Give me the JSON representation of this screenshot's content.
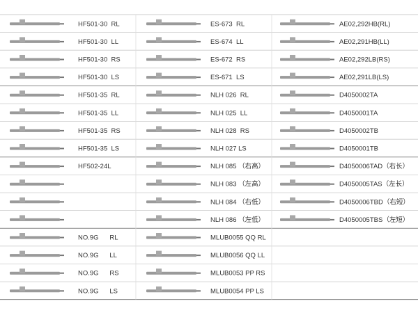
{
  "table": {
    "rows": [
      [
        "HF501-30  RL",
        "ES-673  RL",
        "AE02,292HB(RL)"
      ],
      [
        "HF501-30  LL",
        "ES-674  LL",
        "AE02,291HB(LL)"
      ],
      [
        "HF501-30  RS",
        "ES-672  RS",
        "AE02,292LB(RS)"
      ],
      [
        "HF501-30  LS",
        "ES-671  LS",
        "AE02,291LB(LS)"
      ],
      [
        "HF501-35  RL",
        "NLH 026  RL",
        "D4050002TA"
      ],
      [
        "HF501-35  LL",
        "NLH 025  LL",
        "D4050001TA"
      ],
      [
        "HF501-35  RS",
        "NLH 028  RS",
        "D4050002TB"
      ],
      [
        "HF501-35  LS",
        "NLH 027 LS",
        "D4050001TB"
      ],
      [
        "HF502-24L",
        "NLH 085 （右高）",
        "D4050006TAD（右长）"
      ],
      [
        null,
        "NLH 083 （左高）",
        "D4050005TAS（左长）"
      ],
      [
        null,
        "NLH 084 （右低）",
        "D4050006TBD（右短）"
      ],
      [
        null,
        "NLH 086 （左低）",
        "D4050005TBS（左短）"
      ],
      [
        "NO.9G      RL",
        "MLUB0055 QQ RL",
        null
      ],
      [
        "NO.9G      LL",
        "MLUB0056 QQ LL",
        null
      ],
      [
        "NO.9G      RS",
        "MLUB0053 PP RS",
        null
      ],
      [
        "NO.9G      LS",
        "MLUB0054 PP LS",
        null
      ]
    ]
  }
}
